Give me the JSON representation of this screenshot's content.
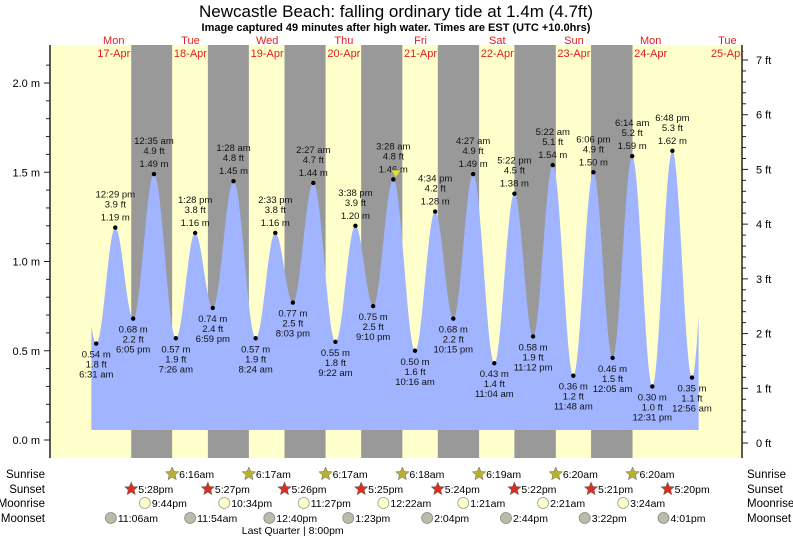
{
  "title": "Newcastle Beach: falling  ordinary tide at 1.4m (4.7ft)",
  "subtitle": "Image captured 49 minutes after high water. Times are EST (UTC +10.0hrs)",
  "colors": {
    "day": "#ffffcc",
    "night": "#999999",
    "water": "#a0b4ff",
    "day_label": "#e02020",
    "sunrise_star": "#b8b030",
    "sunset_star": "#d83020",
    "moonrise": "#ffffcc",
    "moonset": "#bbbbaa",
    "current_marker": "#e8e030"
  },
  "chart_data": {
    "type": "area",
    "title": "Newcastle Beach: falling  ordinary tide at 1.4m (4.7ft)",
    "left_axis": {
      "label_unit": "m",
      "range": [
        0,
        2.1
      ],
      "ticks": [
        "0.0 m",
        "0.5 m",
        "1.0 m",
        "1.5 m",
        "2.0 m"
      ],
      "tick_values": [
        0,
        0.5,
        1.0,
        1.5,
        2.0
      ]
    },
    "right_axis": {
      "label_unit": "ft",
      "range": [
        0,
        7
      ],
      "ticks": [
        "0 ft",
        "1 ft",
        "2 ft",
        "3 ft",
        "4 ft",
        "5 ft",
        "6 ft",
        "7 ft"
      ],
      "tick_values": [
        0,
        1,
        2,
        3,
        4,
        5,
        6,
        7
      ]
    },
    "days": [
      {
        "dow": "Mon",
        "date": "17-Apr"
      },
      {
        "dow": "Tue",
        "date": "18-Apr"
      },
      {
        "dow": "Wed",
        "date": "19-Apr"
      },
      {
        "dow": "Thu",
        "date": "20-Apr"
      },
      {
        "dow": "Fri",
        "date": "21-Apr"
      },
      {
        "dow": "Sat",
        "date": "22-Apr"
      },
      {
        "dow": "Sun",
        "date": "23-Apr"
      },
      {
        "dow": "Mon",
        "date": "24-Apr"
      },
      {
        "dow": "Tue",
        "date": "25-Apr"
      }
    ],
    "start_level_m": 0.84,
    "end_level_m": 0.93,
    "current": {
      "level_m": 1.4,
      "level_ft": 4.7,
      "state": "falling",
      "minutes_after_high": 49
    },
    "tides": [
      {
        "type": "low",
        "day": 0,
        "time": "6:31 am",
        "hours": 6.52,
        "m": "0.54 m",
        "ft": "1.8 ft",
        "value": 0.54
      },
      {
        "type": "high",
        "day": 0,
        "time": "12:29 pm",
        "hours": 12.48,
        "m": "1.19 m",
        "ft": "3.9 ft",
        "value": 1.19
      },
      {
        "type": "low",
        "day": 0,
        "time": "6:05 pm",
        "hours": 18.08,
        "m": "0.68 m",
        "ft": "2.2 ft",
        "value": 0.68
      },
      {
        "type": "high",
        "day": 1,
        "time": "12:35 am",
        "hours": 24.58,
        "m": "1.49 m",
        "ft": "4.9 ft",
        "value": 1.49
      },
      {
        "type": "low",
        "day": 1,
        "time": "7:26 am",
        "hours": 31.43,
        "m": "0.57 m",
        "ft": "1.9 ft",
        "value": 0.57
      },
      {
        "type": "high",
        "day": 1,
        "time": "1:28 pm",
        "hours": 37.47,
        "m": "1.16 m",
        "ft": "3.8 ft",
        "value": 1.16
      },
      {
        "type": "low",
        "day": 1,
        "time": "6:59 pm",
        "hours": 42.98,
        "m": "0.74 m",
        "ft": "2.4 ft",
        "value": 0.74
      },
      {
        "type": "high",
        "day": 2,
        "time": "1:28 am",
        "hours": 49.47,
        "m": "1.45 m",
        "ft": "4.8 ft",
        "value": 1.45
      },
      {
        "type": "low",
        "day": 2,
        "time": "8:24 am",
        "hours": 56.4,
        "m": "0.57 m",
        "ft": "1.9 ft",
        "value": 0.57
      },
      {
        "type": "high",
        "day": 2,
        "time": "2:33 pm",
        "hours": 62.55,
        "m": "1.16 m",
        "ft": "3.8 ft",
        "value": 1.16
      },
      {
        "type": "low",
        "day": 2,
        "time": "8:03 pm",
        "hours": 68.05,
        "m": "0.77 m",
        "ft": "2.5 ft",
        "value": 0.77
      },
      {
        "type": "high",
        "day": 3,
        "time": "2:27 am",
        "hours": 74.45,
        "m": "1.44 m",
        "ft": "4.7 ft",
        "value": 1.44
      },
      {
        "type": "low",
        "day": 3,
        "time": "9:22 am",
        "hours": 81.37,
        "m": "0.55 m",
        "ft": "1.8 ft",
        "value": 0.55
      },
      {
        "type": "high",
        "day": 3,
        "time": "3:38 pm",
        "hours": 87.63,
        "m": "1.20 m",
        "ft": "3.9 ft",
        "value": 1.2
      },
      {
        "type": "low",
        "day": 3,
        "time": "9:10 pm",
        "hours": 93.17,
        "m": "0.75 m",
        "ft": "2.5 ft",
        "value": 0.75
      },
      {
        "type": "high",
        "day": 4,
        "time": "3:28 am",
        "hours": 99.47,
        "m": "1.46 m",
        "ft": "4.8 ft",
        "value": 1.46
      },
      {
        "type": "low",
        "day": 4,
        "time": "10:16 am",
        "hours": 106.27,
        "m": "0.50 m",
        "ft": "1.6 ft",
        "value": 0.5
      },
      {
        "type": "high",
        "day": 4,
        "time": "4:34 pm",
        "hours": 112.57,
        "m": "1.28 m",
        "ft": "4.2 ft",
        "value": 1.28
      },
      {
        "type": "low",
        "day": 4,
        "time": "10:15 pm",
        "hours": 118.25,
        "m": "0.68 m",
        "ft": "2.2 ft",
        "value": 0.68
      },
      {
        "type": "high",
        "day": 5,
        "time": "4:27 am",
        "hours": 124.45,
        "m": "1.49 m",
        "ft": "4.9 ft",
        "value": 1.49
      },
      {
        "type": "low",
        "day": 5,
        "time": "11:04 am",
        "hours": 131.07,
        "m": "0.43 m",
        "ft": "1.4 ft",
        "value": 0.43
      },
      {
        "type": "high",
        "day": 5,
        "time": "5:22 pm",
        "hours": 137.37,
        "m": "1.38 m",
        "ft": "4.5 ft",
        "value": 1.38
      },
      {
        "type": "low",
        "day": 5,
        "time": "11:12 pm",
        "hours": 143.2,
        "m": "0.58 m",
        "ft": "1.9 ft",
        "value": 0.58
      },
      {
        "type": "high",
        "day": 6,
        "time": "5:22 am",
        "hours": 149.37,
        "m": "1.54 m",
        "ft": "5.1 ft",
        "value": 1.54
      },
      {
        "type": "low",
        "day": 6,
        "time": "11:48 am",
        "hours": 155.8,
        "m": "0.36 m",
        "ft": "1.2 ft",
        "value": 0.36
      },
      {
        "type": "high",
        "day": 6,
        "time": "6:06 pm",
        "hours": 162.1,
        "m": "1.50 m",
        "ft": "4.9 ft",
        "value": 1.5
      },
      {
        "type": "low",
        "day": 7,
        "time": "12:05 am",
        "hours": 168.08,
        "m": "0.46 m",
        "ft": "1.5 ft",
        "value": 0.46
      },
      {
        "type": "high",
        "day": 7,
        "time": "6:14 am",
        "hours": 174.23,
        "m": "1.59 m",
        "ft": "5.2 ft",
        "value": 1.59
      },
      {
        "type": "low",
        "day": 7,
        "time": "12:31 pm",
        "hours": 180.52,
        "m": "0.30 m",
        "ft": "1.0 ft",
        "value": 0.3
      },
      {
        "type": "high",
        "day": 7,
        "time": "6:48 pm",
        "hours": 186.8,
        "m": "1.62 m",
        "ft": "5.3 ft",
        "value": 1.62
      },
      {
        "type": "low",
        "day": 8,
        "time": "12:56 am",
        "hours": 192.93,
        "m": "0.35 m",
        "ft": "1.1 ft",
        "value": 0.35
      }
    ],
    "data_start_hours": 5.0,
    "data_end_hours": 195.0,
    "sunrise": [
      {
        "time": "6:16am",
        "hours": 30.27
      },
      {
        "time": "6:17am",
        "hours": 54.28
      },
      {
        "time": "6:17am",
        "hours": 78.28
      },
      {
        "time": "6:18am",
        "hours": 102.3
      },
      {
        "time": "6:19am",
        "hours": 126.32
      },
      {
        "time": "6:20am",
        "hours": 150.33
      },
      {
        "time": "6:20am",
        "hours": 174.33
      }
    ],
    "sunset": [
      {
        "time": "5:28pm",
        "hours": 17.47
      },
      {
        "time": "5:27pm",
        "hours": 41.45
      },
      {
        "time": "5:26pm",
        "hours": 65.43
      },
      {
        "time": "5:25pm",
        "hours": 89.42
      },
      {
        "time": "5:24pm",
        "hours": 113.4
      },
      {
        "time": "5:22pm",
        "hours": 137.37
      },
      {
        "time": "5:21pm",
        "hours": 161.35
      },
      {
        "time": "5:20pm",
        "hours": 185.33
      }
    ],
    "moonrise": [
      {
        "time": "9:44pm",
        "hours": 21.73
      },
      {
        "time": "10:34pm",
        "hours": 46.57
      },
      {
        "time": "11:27pm",
        "hours": 71.45
      },
      {
        "time": "12:22am",
        "hours": 72.37
      },
      {
        "time": "1:21am",
        "hours": 121.35
      },
      {
        "time": "2:21am",
        "hours": 146.35
      },
      {
        "time": "3:24am",
        "hours": 171.4
      }
    ],
    "moonset": [
      {
        "time": "11:06am",
        "hours": 11.1
      },
      {
        "time": "11:54am",
        "hours": 35.9
      },
      {
        "time": "12:40pm",
        "hours": 60.67
      },
      {
        "time": "1:23pm",
        "hours": 85.38
      },
      {
        "time": "2:04pm",
        "hours": 110.07
      },
      {
        "time": "2:44pm",
        "hours": 134.73
      },
      {
        "time": "3:22pm",
        "hours": 159.37
      },
      {
        "time": "4:01pm",
        "hours": 184.02
      }
    ],
    "moon_phase_note": "Last Quarter | 8:00pm",
    "row_labels": {
      "sunrise": "Sunrise",
      "sunset": "Sunset",
      "moonrise": "Moonrise",
      "moonset": "Moonset"
    }
  }
}
